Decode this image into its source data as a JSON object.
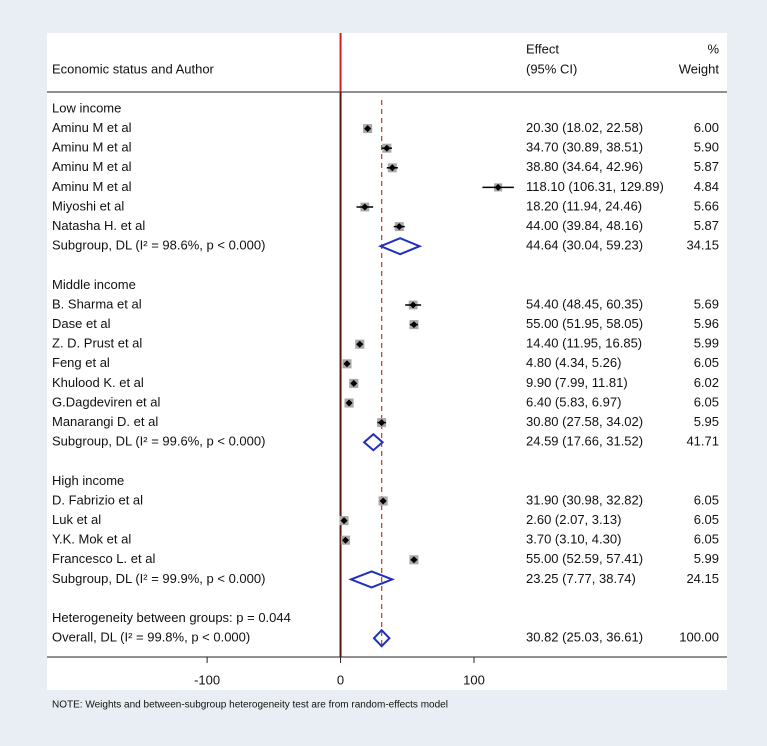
{
  "chart_data": {
    "type": "forest",
    "header": {
      "column1": "Economic status and Author",
      "effect": "Effect",
      "ci": "(95% CI)",
      "pct": "%",
      "weight": "Weight"
    },
    "groups": [
      {
        "name": "Low income",
        "studies": [
          {
            "label": "Aminu M et al",
            "effect": 20.3,
            "lo": 18.02,
            "hi": 22.58,
            "es_label": "20.30 (18.02, 22.58)",
            "weight": 6.0,
            "weight_label": "6.00"
          },
          {
            "label": "Aminu M et al",
            "effect": 34.7,
            "lo": 30.89,
            "hi": 38.51,
            "es_label": "34.70 (30.89, 38.51)",
            "weight": 5.9,
            "weight_label": "5.90"
          },
          {
            "label": "Aminu M et al",
            "effect": 38.8,
            "lo": 34.64,
            "hi": 42.96,
            "es_label": "38.80 (34.64, 42.96)",
            "weight": 5.87,
            "weight_label": "5.87"
          },
          {
            "label": "Aminu M et al",
            "effect": 118.1,
            "lo": 106.31,
            "hi": 129.89,
            "es_label": "118.10 (106.31, 129.89)",
            "weight": 4.84,
            "weight_label": "4.84"
          },
          {
            "label": "Miyoshi et al",
            "effect": 18.2,
            "lo": 11.94,
            "hi": 24.46,
            "es_label": "18.20 (11.94, 24.46)",
            "weight": 5.66,
            "weight_label": "5.66"
          },
          {
            "label": "Natasha H. et al",
            "effect": 44.0,
            "lo": 39.84,
            "hi": 48.16,
            "es_label": "44.00 (39.84, 48.16)",
            "weight": 5.87,
            "weight_label": "5.87"
          }
        ],
        "subgroup": {
          "label": "Subgroup, DL (I² = 98.6%, p < 0.000)",
          "effect": 44.64,
          "lo": 30.04,
          "hi": 59.23,
          "es_label": "44.64 (30.04, 59.23)",
          "weight": 34.15
        }
      },
      {
        "name": "Middle income",
        "studies": [
          {
            "label": "B. Sharma et al",
            "effect": 54.4,
            "lo": 48.45,
            "hi": 60.35,
            "es_label": "54.40 (48.45, 60.35)",
            "weight": 5.69,
            "weight_label": "5.69"
          },
          {
            "label": "Dase et al",
            "effect": 55.0,
            "lo": 51.95,
            "hi": 58.05,
            "es_label": "55.00 (51.95, 58.05)",
            "weight": 5.96,
            "weight_label": "5.96"
          },
          {
            "label": "Z. D. Prust  et al",
            "effect": 14.4,
            "lo": 11.95,
            "hi": 16.85,
            "es_label": "14.40 (11.95, 16.85)",
            "weight": 5.99,
            "weight_label": "5.99"
          },
          {
            "label": "Feng et al",
            "effect": 4.8,
            "lo": 4.34,
            "hi": 5.26,
            "es_label": "4.80 (4.34, 5.26)",
            "weight": 6.05,
            "weight_label": "6.05"
          },
          {
            "label": "Khulood K. et al",
            "effect": 9.9,
            "lo": 7.99,
            "hi": 11.81,
            "es_label": "9.90 (7.99, 11.81)",
            "weight": 6.02,
            "weight_label": "6.02"
          },
          {
            "label": "G.Dagdeviren et al",
            "effect": 6.4,
            "lo": 5.83,
            "hi": 6.97,
            "es_label": "6.40 (5.83, 6.97)",
            "weight": 6.05,
            "weight_label": "6.05"
          },
          {
            "label": "Manarangi D. et al",
            "effect": 30.8,
            "lo": 27.58,
            "hi": 34.02,
            "es_label": "30.80 (27.58, 34.02)",
            "weight": 5.95,
            "weight_label": "5.95"
          }
        ],
        "subgroup": {
          "label": "Subgroup, DL (I² = 99.6%, p < 0.000)",
          "effect": 24.59,
          "lo": 17.66,
          "hi": 31.52,
          "es_label": "24.59 (17.66, 31.52)",
          "weight": 41.71
        }
      },
      {
        "name": "High income",
        "studies": [
          {
            "label": "D. Fabrizio  et al",
            "effect": 31.9,
            "lo": 30.98,
            "hi": 32.82,
            "es_label": "31.90 (30.98, 32.82)",
            "weight": 6.05,
            "weight_label": "6.05"
          },
          {
            "label": "Luk et al",
            "effect": 2.6,
            "lo": 2.07,
            "hi": 3.13,
            "es_label": "2.60 (2.07, 3.13)",
            "weight": 6.05,
            "weight_label": "6.05"
          },
          {
            "label": "Y.K. Mok et al",
            "effect": 3.7,
            "lo": 3.1,
            "hi": 4.3,
            "es_label": "3.70 (3.10, 4.30)",
            "weight": 6.05,
            "weight_label": "6.05"
          },
          {
            "label": "Francesco L. et al",
            "effect": 55.0,
            "lo": 52.59,
            "hi": 57.41,
            "es_label": "55.00 (52.59, 57.41)",
            "weight": 5.99,
            "weight_label": "5.99"
          }
        ],
        "subgroup": {
          "label": "Subgroup, DL (I² = 99.9%, p < 0.000)",
          "effect": 23.25,
          "lo": 7.77,
          "hi": 38.74,
          "es_label": "23.25 (7.77, 38.74)",
          "weight": 24.15
        }
      }
    ],
    "heterogeneity": "Heterogeneity between groups: p = 0.044",
    "overall": {
      "label": "Overall, DL (I² = 99.8%, p < 0.000)",
      "effect": 30.82,
      "lo": 25.03,
      "hi": 36.61,
      "es_label": "30.82 (25.03, 36.61)",
      "weight": 100,
      "weight_label": "100.00"
    },
    "xlim": [
      -220,
      115
    ],
    "xticks": [
      -100,
      0,
      100
    ],
    "null_value": 0,
    "note": "NOTE: Weights and between-subgroup heterogeneity test are from random-effects model"
  }
}
